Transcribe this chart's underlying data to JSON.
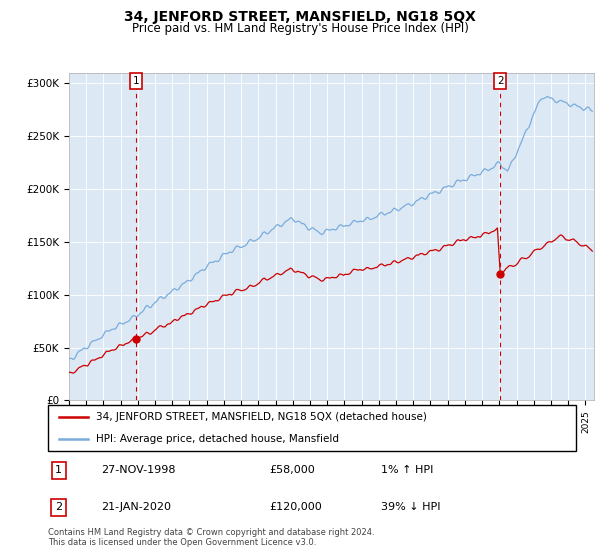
{
  "title": "34, JENFORD STREET, MANSFIELD, NG18 5QX",
  "subtitle": "Price paid vs. HM Land Registry's House Price Index (HPI)",
  "ylim": [
    0,
    310000
  ],
  "xlim_start": 1995.0,
  "xlim_end": 2025.5,
  "legend_line1": "34, JENFORD STREET, MANSFIELD, NG18 5QX (detached house)",
  "legend_line2": "HPI: Average price, detached house, Mansfield",
  "footnote": "Contains HM Land Registry data © Crown copyright and database right 2024.\nThis data is licensed under the Open Government Licence v3.0.",
  "red_color": "#cc0000",
  "blue_color": "#7aacdc",
  "bg_color": "#dce9f5",
  "marker1_x": 1998.9,
  "marker1_y": 58000,
  "marker2_x": 2020.05,
  "marker2_y": 120000
}
